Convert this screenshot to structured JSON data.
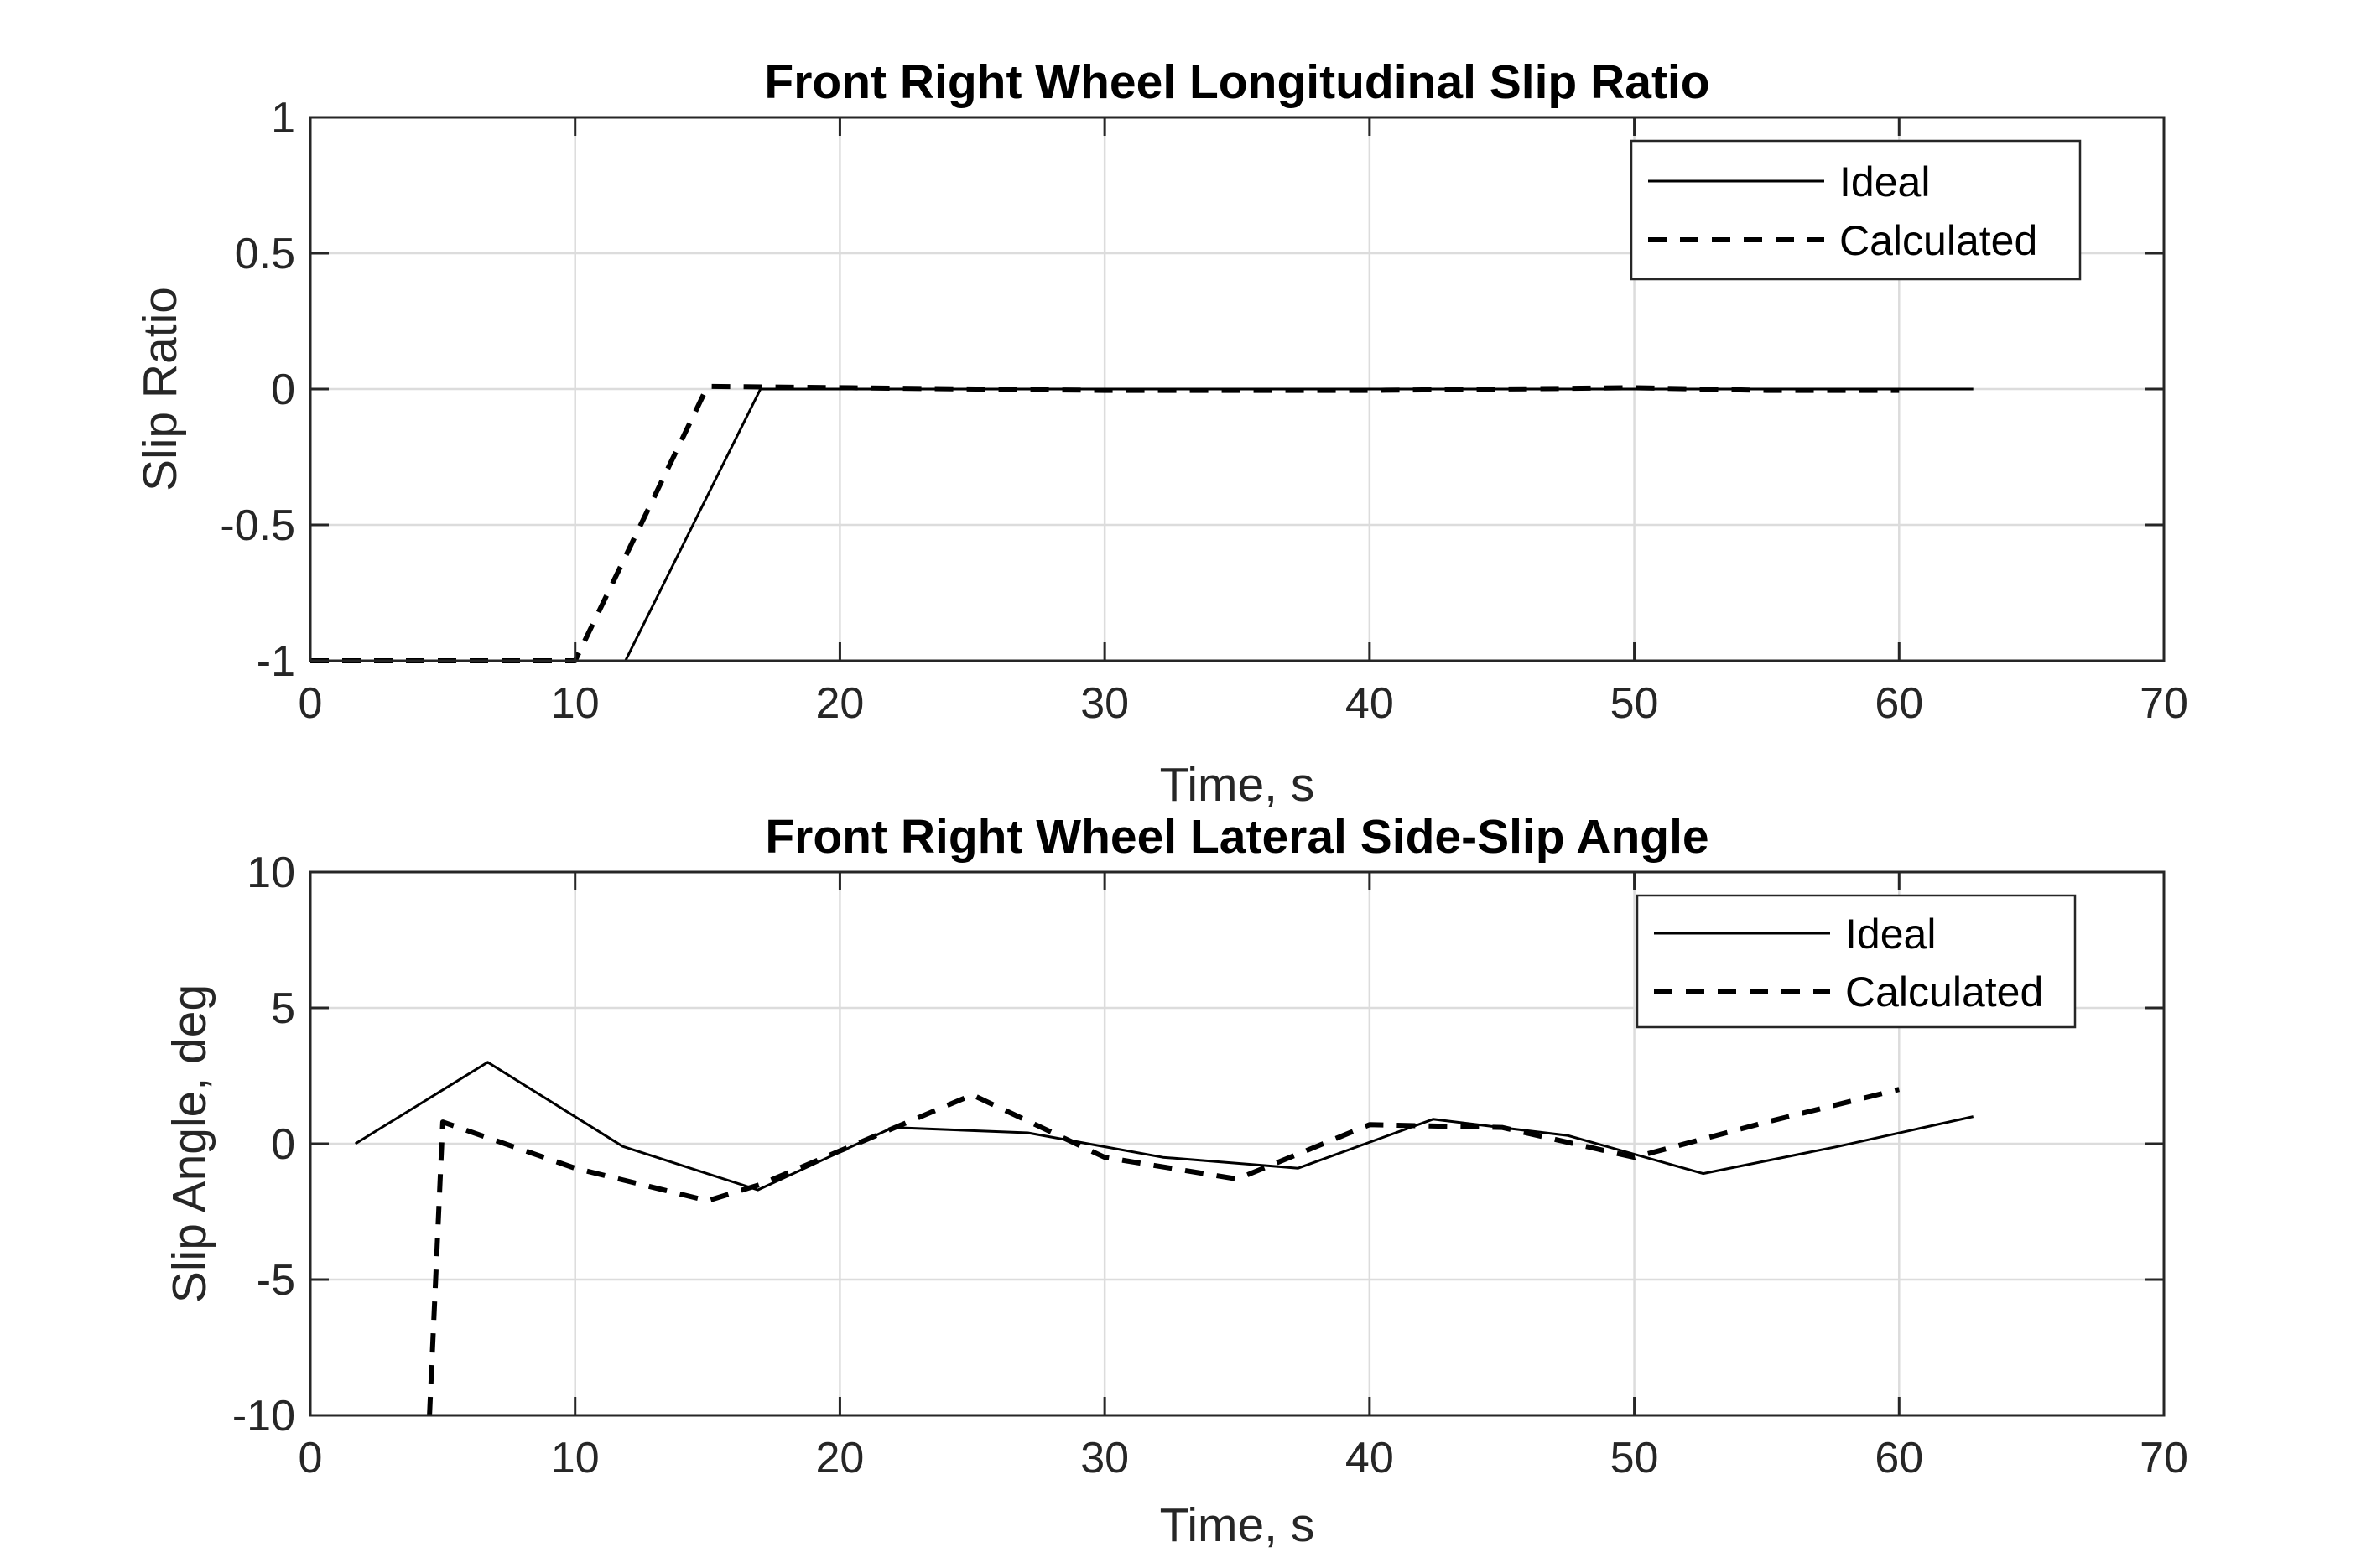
{
  "chart_data": [
    {
      "type": "line",
      "title": "Front Right Wheel Longitudinal Slip Ratio",
      "xlabel": "Time, s",
      "ylabel": "Slip Ratio",
      "xlim": [
        0,
        70
      ],
      "ylim": [
        -1,
        1
      ],
      "xticks": [
        "0",
        "10",
        "20",
        "30",
        "40",
        "50",
        "60",
        "70"
      ],
      "yticks": [
        "1",
        "0.5",
        "0",
        "-0.5",
        "-1"
      ],
      "grid": true,
      "legend_position": "top-right",
      "series": [
        {
          "name": "Ideal",
          "style": "solid",
          "x": [
            0,
            11.9,
            17,
            62.8
          ],
          "y": [
            -1,
            -1,
            0,
            0
          ]
        },
        {
          "name": "Calculated",
          "style": "dashed",
          "x": [
            0,
            10,
            15,
            20,
            30,
            40,
            50,
            55,
            60
          ],
          "y": [
            -1,
            -1,
            0.01,
            0.005,
            -0.005,
            -0.005,
            0.005,
            -0.005,
            -0.005
          ]
        }
      ]
    },
    {
      "type": "line",
      "title": "Front Right Wheel Lateral Side-Slip Angle",
      "xlabel": "Time, s",
      "ylabel": "Slip Angle, deg",
      "xlim": [
        0,
        70
      ],
      "ylim": [
        -10,
        10
      ],
      "xticks": [
        "0",
        "10",
        "20",
        "30",
        "40",
        "50",
        "60",
        "70"
      ],
      "yticks": [
        "10",
        "5",
        "0",
        "-5",
        "-10"
      ],
      "grid": true,
      "legend_position": "top-right",
      "series": [
        {
          "name": "Ideal",
          "style": "solid",
          "x": [
            1.7,
            6.7,
            11.8,
            16.9,
            22.0,
            27.1,
            32.2,
            37.3,
            42.4,
            47.5,
            52.6,
            57.7,
            62.8
          ],
          "y": [
            0,
            3.0,
            -0.1,
            -1.7,
            0.6,
            0.4,
            -0.5,
            -0.9,
            0.9,
            0.3,
            -1.1,
            -0.1,
            1.0
          ]
        },
        {
          "name": "Calculated",
          "style": "dashed",
          "x": [
            4.5,
            5.0,
            10,
            15,
            17,
            25,
            30,
            35,
            40,
            45,
            50,
            55,
            60
          ],
          "y": [
            -10,
            0.8,
            -0.9,
            -2.1,
            -1.5,
            1.8,
            -0.5,
            -1.3,
            0.7,
            0.6,
            -0.5,
            0.8,
            2.0
          ]
        }
      ]
    }
  ]
}
